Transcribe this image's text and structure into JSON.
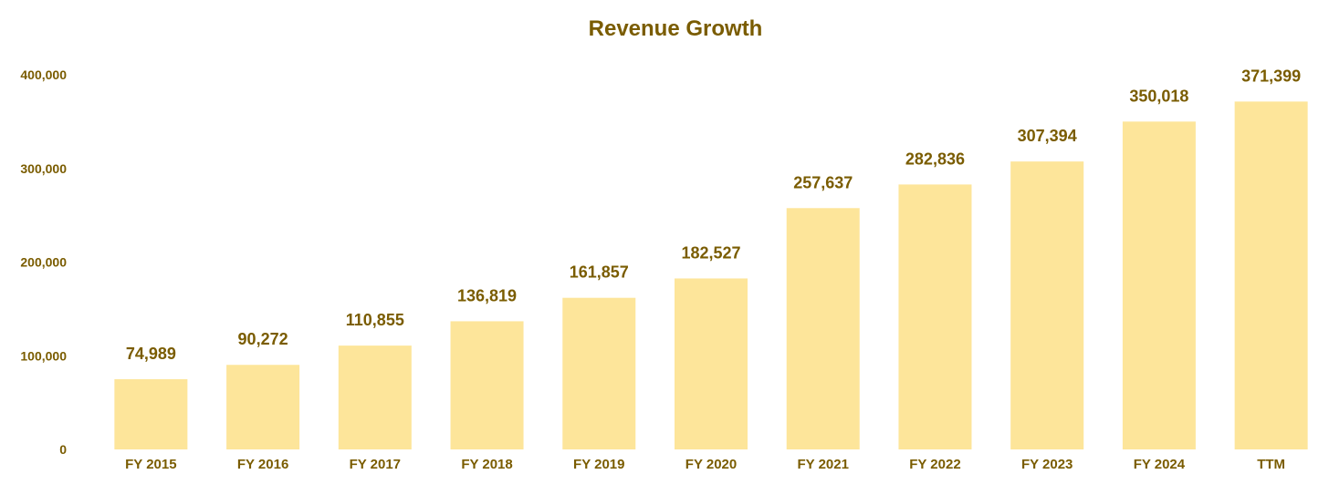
{
  "chart_data": {
    "type": "bar",
    "title": "Revenue Growth",
    "xlabel": "",
    "ylabel": "",
    "categories": [
      "FY 2015",
      "FY 2016",
      "FY 2017",
      "FY 2018",
      "FY 2019",
      "FY 2020",
      "FY 2021",
      "FY 2022",
      "FY 2023",
      "FY 2024",
      "TTM"
    ],
    "values": [
      74989,
      90272,
      110855,
      136819,
      161857,
      182527,
      257637,
      282836,
      307394,
      350018,
      371399
    ],
    "data_labels": [
      "74,989",
      "90,272",
      "110,855",
      "136,819",
      "161,857",
      "182,527",
      "257,637",
      "282,836",
      "307,394",
      "350,018",
      "371,399"
    ],
    "yticks": [
      0,
      100000,
      200000,
      300000,
      400000
    ],
    "ytick_labels": [
      "0",
      "100,000",
      "200,000",
      "300,000",
      "400,000"
    ],
    "ylim": [
      0,
      400000
    ],
    "grid": false,
    "legend": "none",
    "bar_color": "#fde59a",
    "text_color": "#7a5c00"
  }
}
